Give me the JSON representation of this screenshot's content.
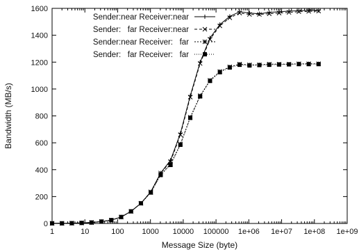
{
  "chart_data": {
    "type": "line",
    "title": "",
    "xlabel": "Message Size (byte)",
    "ylabel": "Bandwidth (MB/s)",
    "xscale": "log",
    "xlim": [
      1,
      1000000000
    ],
    "ylim": [
      0,
      1600
    ],
    "grid": false,
    "legend_position": "top-left",
    "x_ticks": [
      1,
      10,
      100,
      1000,
      10000,
      100000,
      1000000,
      10000000,
      100000000,
      1000000000
    ],
    "x_tick_labels": [
      "1",
      "10",
      "100",
      "1000",
      "10000",
      "100000",
      "1e+06",
      "1e+07",
      "1e+08",
      "1e+09"
    ],
    "y_ticks": [
      0,
      200,
      400,
      600,
      800,
      1000,
      1200,
      1400,
      1600
    ],
    "y_tick_labels": [
      "0",
      "200",
      "400",
      "600",
      "800",
      "1000",
      "1200",
      "1400",
      "1600"
    ],
    "x": [
      1,
      2,
      4,
      8,
      16,
      32,
      64,
      128,
      256,
      512,
      1024,
      2048,
      4096,
      8192,
      16384,
      32768,
      65536,
      131072,
      262144,
      524288,
      1048576,
      2097152,
      4194304,
      8388608,
      16777216,
      33554432,
      67108864,
      134217728
    ],
    "series": [
      {
        "name": "Sender:near Receiver:near",
        "marker": "plus",
        "dash": "solid",
        "color": "#000000",
        "values": [
          1,
          1,
          2,
          4,
          7,
          14,
          25,
          48,
          90,
          150,
          235,
          375,
          470,
          670,
          950,
          1200,
          1380,
          1480,
          1540,
          1575,
          1565,
          1560,
          1570,
          1575,
          1580,
          1582,
          1585,
          1585
        ]
      },
      {
        "name": "Sender:   far Receiver:near",
        "marker": "cross",
        "dash": "dashed",
        "color": "#000000",
        "values": [
          1,
          1,
          2,
          4,
          7,
          14,
          25,
          48,
          90,
          150,
          235,
          375,
          460,
          660,
          940,
          1190,
          1370,
          1470,
          1530,
          1565,
          1555,
          1555,
          1560,
          1565,
          1570,
          1575,
          1578,
          1580
        ]
      },
      {
        "name": "Sender:near Receiver:   far",
        "marker": "star",
        "dash": "dotted",
        "color": "#000000",
        "values": [
          1,
          1,
          2,
          4,
          7,
          14,
          25,
          48,
          90,
          150,
          230,
          365,
          440,
          590,
          790,
          950,
          1065,
          1130,
          1165,
          1185,
          1180,
          1180,
          1185,
          1185,
          1185,
          1188,
          1188,
          1188
        ]
      },
      {
        "name": "Sender:   far Receiver:   far",
        "marker": "square",
        "dash": "dotted-fine",
        "color": "#000000",
        "values": [
          1,
          1,
          2,
          4,
          7,
          14,
          25,
          48,
          90,
          150,
          230,
          360,
          435,
          585,
          785,
          945,
          1060,
          1125,
          1160,
          1180,
          1175,
          1178,
          1180,
          1182,
          1183,
          1185,
          1185,
          1185
        ]
      }
    ]
  }
}
